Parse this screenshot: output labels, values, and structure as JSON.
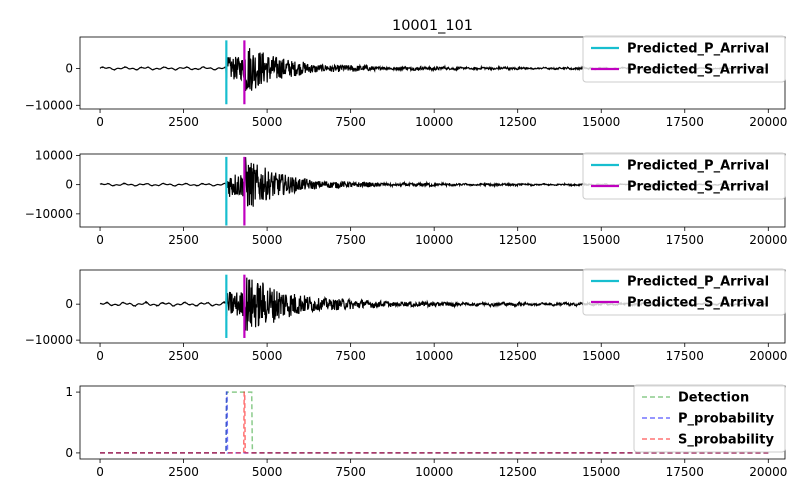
{
  "chart_data": [
    {
      "type": "line",
      "title": "10001_101",
      "xlim": [
        -600,
        20500
      ],
      "ylim": [
        -11000,
        8500
      ],
      "xticks": [
        0,
        2500,
        5000,
        7500,
        10000,
        12500,
        15000,
        17500,
        20000
      ],
      "yticks": [
        -10000,
        0
      ],
      "series": [
        {
          "name": "waveform",
          "color": "#000000",
          "x_range": [
            0,
            20000
          ],
          "p_arrival": 3780,
          "s_arrival": 4320,
          "noise_amp": 500,
          "peak_amp": 7000,
          "decay": 900,
          "tail_amp": 1100
        },
        {
          "name": "Predicted_P_Arrival",
          "x": 3780,
          "y": [
            -9700,
            7600
          ],
          "color": "#17becf"
        },
        {
          "name": "Predicted_S_Arrival",
          "x": 4320,
          "y": [
            -9700,
            7600
          ],
          "color": "#bf00bf"
        }
      ],
      "legend": [
        "Predicted_P_Arrival",
        "Predicted_S_Arrival"
      ],
      "legend_position": "top-right"
    },
    {
      "type": "line",
      "title": "",
      "xlim": [
        -600,
        20500
      ],
      "ylim": [
        -14500,
        10500
      ],
      "xticks": [
        0,
        2500,
        5000,
        7500,
        10000,
        12500,
        15000,
        17500,
        20000
      ],
      "yticks": [
        -10000,
        0,
        10000
      ],
      "series": [
        {
          "name": "waveform",
          "color": "#000000",
          "x_range": [
            0,
            20000
          ],
          "p_arrival": 3780,
          "s_arrival": 4320,
          "noise_amp": 550,
          "peak_amp": 9500,
          "decay": 900,
          "tail_amp": 1200
        },
        {
          "name": "Predicted_P_Arrival",
          "x": 3780,
          "y": [
            -14000,
            9500
          ],
          "color": "#17becf"
        },
        {
          "name": "Predicted_S_Arrival",
          "x": 4320,
          "y": [
            -14000,
            9500
          ],
          "color": "#bf00bf"
        }
      ],
      "legend": [
        "Predicted_P_Arrival",
        "Predicted_S_Arrival"
      ],
      "legend_position": "top-right"
    },
    {
      "type": "line",
      "title": "",
      "xlim": [
        -600,
        20500
      ],
      "ylim": [
        -10800,
        9500
      ],
      "xticks": [
        0,
        2500,
        5000,
        7500,
        10000,
        12500,
        15000,
        17500,
        20000
      ],
      "yticks": [
        -10000,
        0
      ],
      "series": [
        {
          "name": "waveform",
          "color": "#000000",
          "x_range": [
            0,
            20000
          ],
          "p_arrival": 3780,
          "s_arrival": 4320,
          "noise_amp": 650,
          "peak_amp": 8000,
          "decay": 1100,
          "tail_amp": 1600
        },
        {
          "name": "Predicted_P_Arrival",
          "x": 3780,
          "y": [
            -9400,
            8200
          ],
          "color": "#17becf"
        },
        {
          "name": "Predicted_S_Arrival",
          "x": 4320,
          "y": [
            -9400,
            8200
          ],
          "color": "#bf00bf"
        }
      ],
      "legend": [
        "Predicted_P_Arrival",
        "Predicted_S_Arrival"
      ],
      "legend_position": "top-right"
    },
    {
      "type": "line",
      "title": "",
      "xlim": [
        -600,
        20500
      ],
      "ylim": [
        -0.1,
        1.1
      ],
      "xticks": [
        0,
        2500,
        5000,
        7500,
        10000,
        12500,
        15000,
        17500,
        20000
      ],
      "yticks": [
        0,
        1
      ],
      "series": [
        {
          "name": "Detection",
          "color": "#2ca02c",
          "dash": true,
          "x": [
            0,
            3770,
            3790,
            4540,
            4560,
            20000
          ],
          "y": [
            0,
            0,
            1,
            1,
            0,
            0
          ]
        },
        {
          "name": "P_probability",
          "color": "#0000ff",
          "dash": true,
          "x": [
            0,
            3770,
            3785,
            3800,
            3815,
            20000
          ],
          "y": [
            0,
            0,
            1,
            1,
            0,
            0
          ]
        },
        {
          "name": "S_probability",
          "color": "#ff0000",
          "dash": true,
          "x": [
            0,
            4300,
            4315,
            4330,
            4345,
            20000
          ],
          "y": [
            0,
            0,
            1,
            1,
            0,
            0
          ]
        }
      ],
      "legend": [
        "Detection",
        "P_probability",
        "S_probability"
      ],
      "legend_position": "top-right"
    }
  ]
}
